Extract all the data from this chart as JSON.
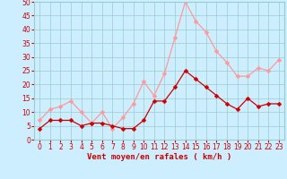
{
  "x": [
    0,
    1,
    2,
    3,
    4,
    5,
    6,
    7,
    8,
    9,
    10,
    11,
    12,
    13,
    14,
    15,
    16,
    17,
    18,
    19,
    20,
    21,
    22,
    23
  ],
  "mean_wind": [
    4,
    7,
    7,
    7,
    5,
    6,
    6,
    5,
    4,
    4,
    7,
    14,
    14,
    19,
    25,
    22,
    19,
    16,
    13,
    11,
    15,
    12,
    13,
    13
  ],
  "gust_wind": [
    7,
    11,
    12,
    14,
    10,
    6,
    10,
    4,
    8,
    13,
    21,
    16,
    24,
    37,
    50,
    43,
    39,
    32,
    28,
    23,
    23,
    26,
    25,
    29
  ],
  "mean_color": "#cc0000",
  "gust_color": "#ff9999",
  "bg_color": "#cceeff",
  "grid_color": "#99cccc",
  "xlabel": "Vent moyen/en rafales ( km/h )",
  "ylim": [
    0,
    50
  ],
  "yticks": [
    0,
    5,
    10,
    15,
    20,
    25,
    30,
    35,
    40,
    45,
    50
  ],
  "xticks": [
    0,
    1,
    2,
    3,
    4,
    5,
    6,
    7,
    8,
    9,
    10,
    11,
    12,
    13,
    14,
    15,
    16,
    17,
    18,
    19,
    20,
    21,
    22,
    23
  ],
  "markersize": 2.5,
  "linewidth": 0.9,
  "tick_fontsize": 5.5,
  "xlabel_fontsize": 6.5
}
